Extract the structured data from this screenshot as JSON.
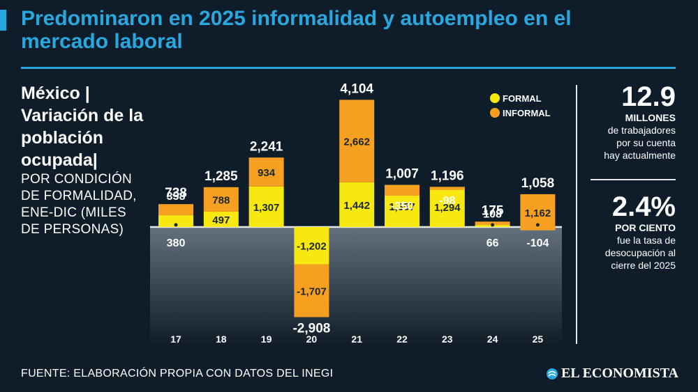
{
  "title": "Predominaron en 2025 informalidad y autoempleo en el mercado laboral",
  "left_panel": {
    "heading": "México | Variación de la población ocupada|",
    "subheading": "POR CONDICIÓN DE FORMALIDAD, ENE-DIC (MILES DE PERSONAS)"
  },
  "stats": [
    {
      "value": "12.9",
      "caption": "MILLONES",
      "lines": [
        "de trabajadores",
        "por su cuenta",
        "hay actualmente"
      ]
    },
    {
      "value": "2.4%",
      "caption": "POR CIENTO",
      "lines": [
        "fue la tasa de",
        "desocupación al",
        "cierre del 2025"
      ]
    }
  ],
  "source": "FUENTE: ELABORACIÓN PROPIA CON DATOS DEL INEGI",
  "brand": "EL ECONOMISTA",
  "colors": {
    "formal": "#f7e90f",
    "informal": "#f5a021",
    "accent": "#29a8e0",
    "background": "#0f1c2a"
  },
  "chart_data": {
    "type": "bar",
    "stacked": true,
    "categories": [
      "17",
      "18",
      "19",
      "20",
      "21",
      "22",
      "23",
      "24",
      "25"
    ],
    "series": [
      {
        "name": "FORMAL",
        "values": [
          380,
          497,
          1307,
          -1202,
          1442,
          1357,
          1294,
          66,
          -104
        ]
      },
      {
        "name": "INFORMAL",
        "values": [
          358,
          788,
          934,
          -1707,
          2662,
          -350,
          -98,
          108,
          1162
        ]
      }
    ],
    "totals": [
      "738",
      "1,285",
      "2,241",
      "-2,908",
      "4,104",
      "1,007",
      "1,196",
      "175",
      "1,058"
    ],
    "formal_labels": [
      "380",
      "497",
      "1,307",
      "-1,202",
      "1,442",
      "1,357",
      "1,294",
      "66",
      "-104"
    ],
    "informal_labels": [
      "358",
      "788",
      "934",
      "-1,707",
      "2,662",
      "-350",
      "-98",
      "108",
      "1,162"
    ],
    "legend_position": "top-right",
    "ylim": [
      -3000,
      4200
    ]
  }
}
